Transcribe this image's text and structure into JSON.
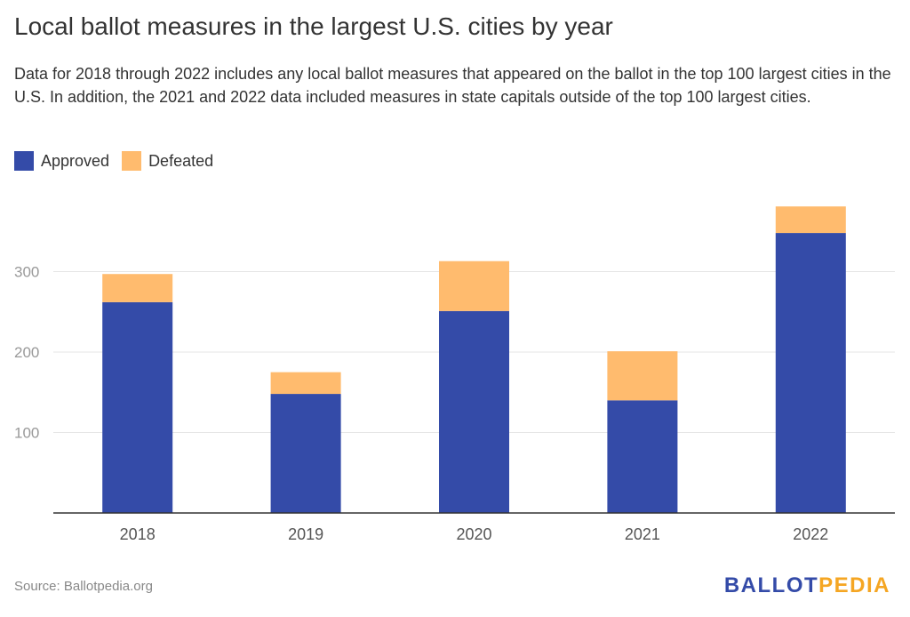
{
  "header": {
    "title": "Local ballot measures in the largest U.S. cities by year",
    "subtitle": "Data for 2018 through 2022 includes any local ballot measures that appeared on the ballot in the top 100 largest cities in the U.S. In addition, the 2021 and 2022 data included measures in state capitals outside of the top 100 largest cities."
  },
  "footer": {
    "source": "Source: Ballotpedia.org",
    "logo_part1": "BALLOT",
    "logo_part2": "PEDIA"
  },
  "colors": {
    "approved": "#344ba8",
    "defeated": "#ffbb6e",
    "grid": "#e5e5e5",
    "axis": "#333333",
    "logo_blue": "#344ba8",
    "logo_orange": "#f5a623"
  },
  "chart_data": {
    "type": "bar",
    "stacked": true,
    "categories": [
      "2018",
      "2019",
      "2020",
      "2021",
      "2022"
    ],
    "series": [
      {
        "name": "Approved",
        "values": [
          262,
          148,
          251,
          140,
          348
        ]
      },
      {
        "name": "Defeated",
        "values": [
          35,
          27,
          62,
          61,
          33
        ]
      }
    ],
    "ylim": [
      0,
      400
    ],
    "yticks": [
      100,
      200,
      300
    ],
    "grid": true,
    "legend": "top-left"
  }
}
